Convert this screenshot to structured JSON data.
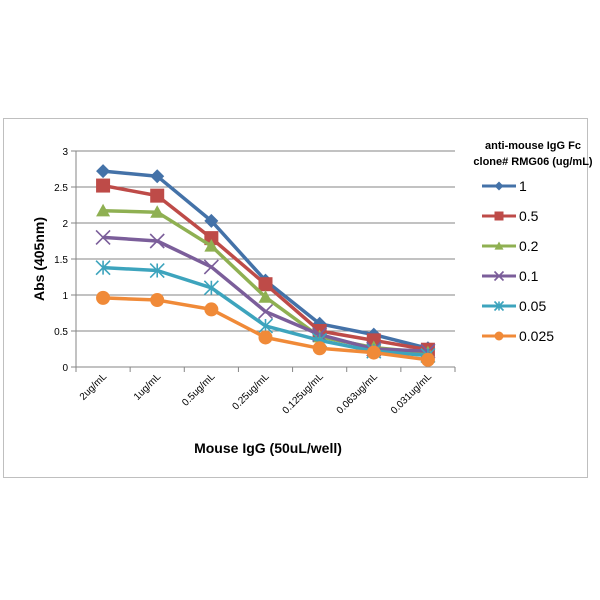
{
  "chart_data": {
    "type": "line",
    "xlabel": "Mouse IgG (50uL/well)",
    "ylabel": "Abs (405nm)",
    "ylim": [
      0,
      3
    ],
    "yticks": [
      "0",
      "0.5",
      "1",
      "1.5",
      "2",
      "2.5",
      "3"
    ],
    "categories": [
      "2ug/mL",
      "1ug/mL",
      "0.5ug/mL",
      "0.25ug/mL",
      "0.125ug/mL",
      "0.063ug/mL",
      "0.031ug/mL"
    ],
    "grid": true,
    "legend": {
      "title_line1": "anti-mouse IgG Fc",
      "title_line2": "clone# RMG06 (ug/mL)",
      "placement": "right"
    },
    "series": [
      {
        "name": "1",
        "color": "#4472a8",
        "marker": "diamond",
        "values": [
          2.72,
          2.65,
          2.03,
          1.2,
          0.6,
          0.45,
          0.26
        ]
      },
      {
        "name": "0.5",
        "color": "#be4b48",
        "marker": "square",
        "values": [
          2.52,
          2.38,
          1.79,
          1.15,
          0.5,
          0.37,
          0.24
        ]
      },
      {
        "name": "0.2",
        "color": "#8fb052",
        "marker": "triangle",
        "values": [
          2.17,
          2.15,
          1.68,
          0.97,
          0.42,
          0.27,
          0.2
        ]
      },
      {
        "name": "0.1",
        "color": "#7b5e9a",
        "marker": "x",
        "values": [
          1.8,
          1.75,
          1.39,
          0.77,
          0.45,
          0.25,
          0.22
        ]
      },
      {
        "name": "0.05",
        "color": "#3da4bd",
        "marker": "star",
        "values": [
          1.38,
          1.34,
          1.1,
          0.57,
          0.37,
          0.22,
          0.16
        ]
      },
      {
        "name": "0.025",
        "color": "#f08a38",
        "marker": "circle",
        "values": [
          0.96,
          0.93,
          0.8,
          0.41,
          0.26,
          0.2,
          0.1
        ]
      }
    ]
  }
}
